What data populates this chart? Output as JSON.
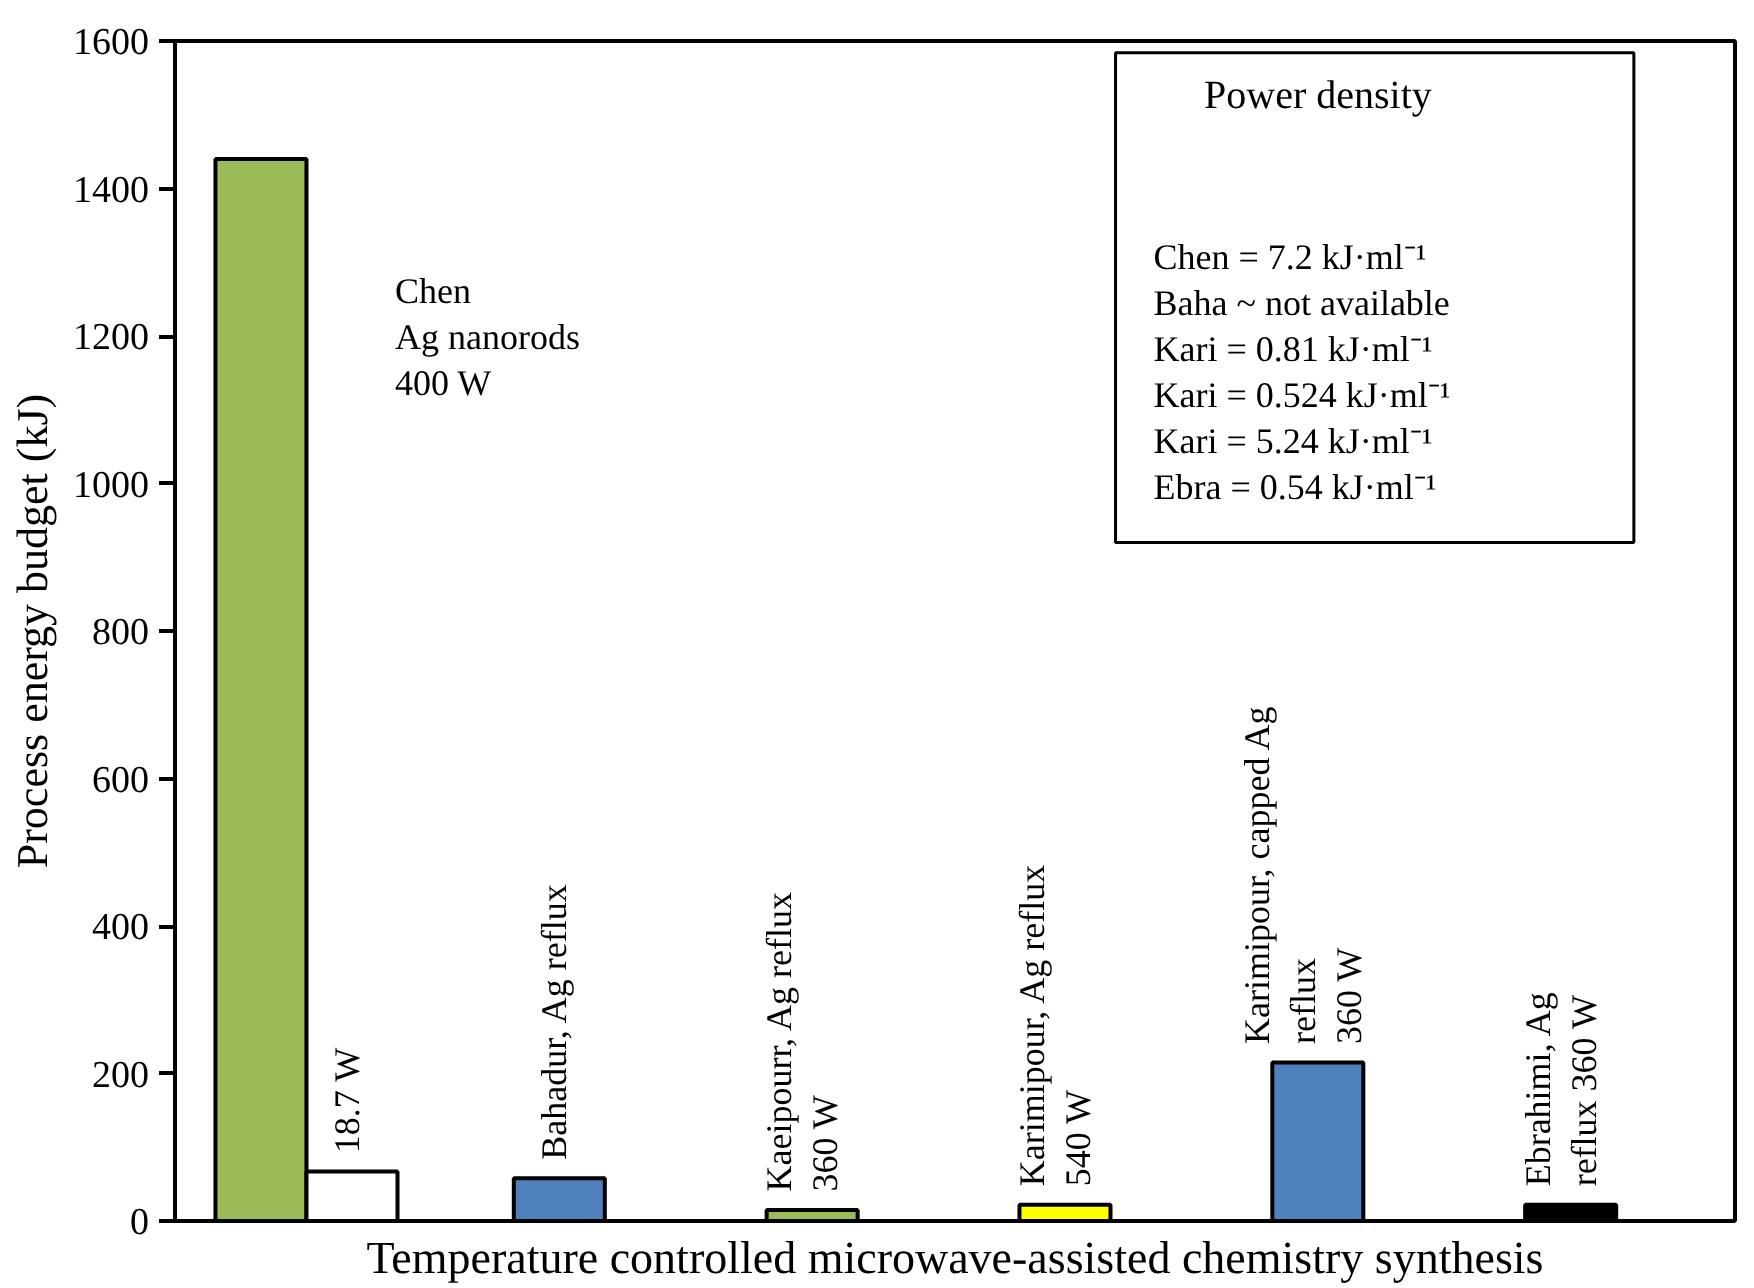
{
  "chart_data": {
    "type": "bar",
    "xlabel": "Temperature controlled microwave-assisted chemistry synthesis",
    "ylabel": "Process energy budget (kJ)",
    "categories": [
      null,
      null,
      null,
      null,
      null,
      null,
      null
    ],
    "colors": [
      "#9bbb59",
      "#ffffff",
      "#4f81bd",
      "#9bbb59",
      "#ffff00",
      "#4f81bd",
      "#000000"
    ],
    "values": [
      1440,
      67,
      58,
      15,
      22,
      215,
      22
    ],
    "ylim": [
      0,
      1600
    ],
    "yticks": [
      0,
      200,
      400,
      600,
      800,
      1000,
      1200,
      1400,
      1600
    ],
    "grid": false,
    "annotations": [
      "Chen\nAg nanorods\n400 W",
      "18.7 W",
      "Bahadur, Ag reflux",
      "Kaeipourr, Ag reflux\n360 W",
      "Karimipour, Ag reflux\n540 W",
      "Karimipour, capped Ag\nreflux\n360 W",
      "Ebrahimi, Ag\nreflux 360 W",
      "Power density",
      "Chen = 7.2 kJ·ml⁻¹\nBaha ~ not available\nKari = 0.81 kJ·ml⁻¹\nKari = 0.524 kJ·ml⁻¹\nKari = 5.24 kJ·ml⁻¹\nEbra = 0.54 kJ·ml⁻¹"
    ]
  }
}
